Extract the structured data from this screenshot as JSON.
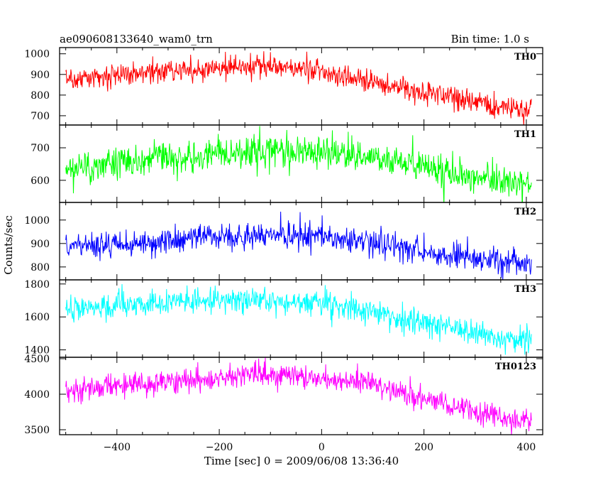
{
  "header": {
    "title": "ae090608133640_wam0_trn",
    "bin_time": "Bin time: 1.0 s"
  },
  "chart_data": {
    "type": "line",
    "title": "ae090608133640_wam0_trn",
    "xlabel": "Time [sec] 0 = 2009/06/08 13:36:40",
    "ylabel": "Counts/sec",
    "xlim": [
      -512,
      432
    ],
    "x_ticks": [
      -400,
      -200,
      0,
      200,
      400
    ],
    "x_start": -500,
    "x_end": 410,
    "bin_time_s": 1.0,
    "grid": false,
    "legend": "none",
    "panels": [
      {
        "name": "TH0",
        "color": "#ff0000",
        "ylim": [
          655,
          1030
        ],
        "y_ticks": [
          700,
          800,
          900,
          1000
        ],
        "trend": [
          [
            -500,
            880
          ],
          [
            -300,
            920
          ],
          [
            -100,
            935
          ],
          [
            0,
            925
          ],
          [
            20,
            900
          ],
          [
            100,
            870
          ],
          [
            200,
            810
          ],
          [
            300,
            770
          ],
          [
            410,
            720
          ]
        ],
        "noise": 28
      },
      {
        "name": "TH1",
        "color": "#00ff00",
        "ylim": [
          532,
          770
        ],
        "y_ticks": [
          600,
          700
        ],
        "trend": [
          [
            -500,
            635
          ],
          [
            -300,
            670
          ],
          [
            -100,
            690
          ],
          [
            0,
            690
          ],
          [
            100,
            670
          ],
          [
            200,
            640
          ],
          [
            300,
            610
          ],
          [
            410,
            585
          ]
        ],
        "noise": 25
      },
      {
        "name": "TH2",
        "color": "#0000ff",
        "ylim": [
          745,
          1075
        ],
        "y_ticks": [
          800,
          900,
          1000
        ],
        "trend": [
          [
            -500,
            885
          ],
          [
            -300,
            910
          ],
          [
            -150,
            935
          ],
          [
            0,
            930
          ],
          [
            100,
            905
          ],
          [
            200,
            870
          ],
          [
            300,
            835
          ],
          [
            410,
            805
          ]
        ],
        "noise": 28
      },
      {
        "name": "TH3",
        "color": "#00ffff",
        "ylim": [
          1355,
          1825
        ],
        "y_ticks": [
          1400,
          1600,
          1800
        ],
        "trend": [
          [
            -500,
            1650
          ],
          [
            -300,
            1690
          ],
          [
            -150,
            1710
          ],
          [
            0,
            1680
          ],
          [
            100,
            1630
          ],
          [
            200,
            1560
          ],
          [
            300,
            1500
          ],
          [
            410,
            1440
          ]
        ],
        "noise": 38
      },
      {
        "name": "TH0123",
        "color": "#ff00ff",
        "ylim": [
          3430,
          4520
        ],
        "y_ticks": [
          3500,
          4000,
          4500
        ],
        "trend": [
          [
            -500,
            4050
          ],
          [
            -300,
            4180
          ],
          [
            -150,
            4280
          ],
          [
            0,
            4240
          ],
          [
            100,
            4130
          ],
          [
            200,
            3950
          ],
          [
            300,
            3770
          ],
          [
            410,
            3560
          ]
        ],
        "noise": 85
      }
    ]
  }
}
